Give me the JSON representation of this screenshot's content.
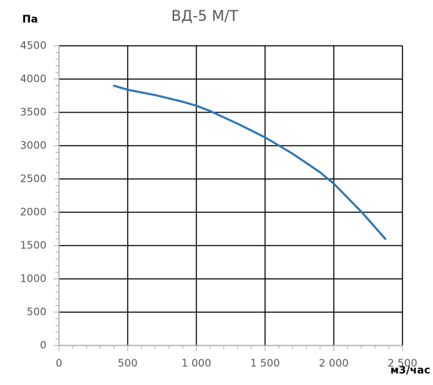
{
  "chart_data": {
    "type": "line",
    "title": "ВД-5 М/Т",
    "y_label": "Па",
    "x_label": "м3/час",
    "x": [
      400,
      500,
      700,
      900,
      1000,
      1100,
      1300,
      1500,
      1700,
      1900,
      2000,
      2100,
      2200,
      2375
    ],
    "series": [
      {
        "name": "ВД-5 М/Т",
        "color": "#2e75b6",
        "values": [
          3900,
          3840,
          3760,
          3660,
          3600,
          3520,
          3330,
          3125,
          2880,
          2600,
          2430,
          2220,
          2010,
          1600
        ]
      }
    ],
    "xlim": [
      0,
      2500
    ],
    "xticks": [
      0,
      500,
      {
        "value": 1000,
        "label": "1 000"
      },
      {
        "value": 1500,
        "label": "1 500"
      },
      {
        "value": 2000,
        "label": "2 000"
      },
      {
        "value": 2500,
        "label": "2 500"
      }
    ],
    "ylim": [
      0,
      4500
    ],
    "yticks": [
      0,
      500,
      1000,
      1500,
      2000,
      2500,
      3000,
      3500,
      4000,
      4500
    ],
    "grid": true
  }
}
